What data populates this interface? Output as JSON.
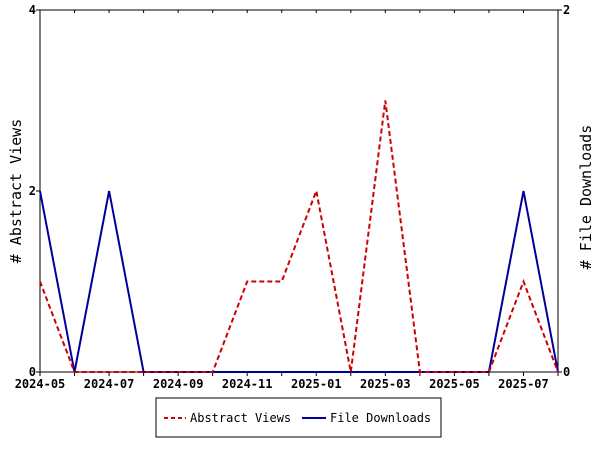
{
  "chart_data": {
    "type": "line",
    "x": [
      "2024-05",
      "2024-06",
      "2024-07",
      "2024-08",
      "2024-09",
      "2024-10",
      "2024-11",
      "2024-12",
      "2025-01",
      "2025-02",
      "2025-03",
      "2025-04",
      "2025-05",
      "2025-06",
      "2025-07",
      "2025-08"
    ],
    "x_tick_labels": [
      "2024-05",
      "2024-07",
      "2024-09",
      "2024-11",
      "2025-01",
      "2025-03",
      "2025-05",
      "2025-07"
    ],
    "y_left": {
      "label": "# Abstract Views",
      "range": [
        0,
        4
      ],
      "ticks": [
        "0",
        "2",
        "4"
      ]
    },
    "y_right": {
      "label": "# File Downloads",
      "range": [
        0,
        2
      ],
      "ticks": [
        "0",
        "2"
      ]
    },
    "series": [
      {
        "name": "Abstract Views",
        "axis": "left",
        "color": "#cc0000",
        "style": "dashed",
        "values": [
          1,
          0,
          0,
          0,
          0,
          0,
          1,
          1,
          2,
          0,
          3,
          0,
          0,
          0,
          1,
          0
        ]
      },
      {
        "name": "File Downloads",
        "axis": "right",
        "color": "#000099",
        "style": "solid",
        "values": [
          1,
          0,
          1,
          0,
          0,
          0,
          0,
          0,
          0,
          0,
          0,
          0,
          0,
          0,
          1,
          0
        ]
      }
    ],
    "grid": false,
    "legend_position": "bottom"
  }
}
